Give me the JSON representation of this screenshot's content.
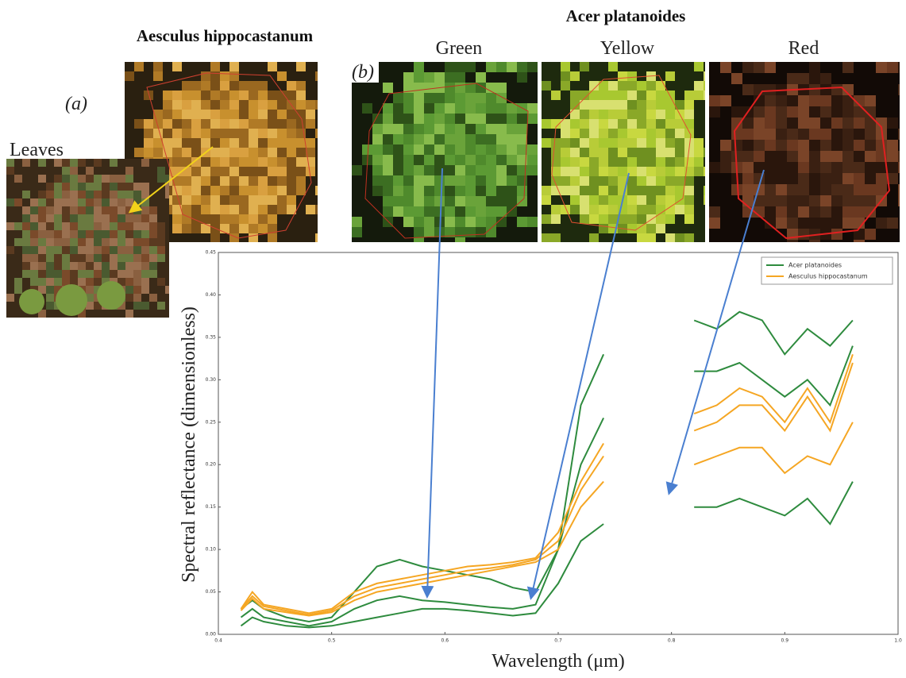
{
  "labels": {
    "panel_a": "(a)",
    "panel_b": "(b)",
    "leaves": "Leaves",
    "aesculus_title": "Aesculus hippocastanum",
    "acer_title": "Acer platanoides",
    "green": "Green",
    "yellow": "Yellow",
    "red": "Red"
  },
  "chart_data": {
    "type": "line",
    "xlabel": "Wavelength (μm)",
    "ylabel": "Spectral reflectance (dimensionless)",
    "xlim": [
      0.4,
      1.0
    ],
    "ylim": [
      0,
      0.45
    ],
    "xticks": [
      0.4,
      0.5,
      0.6,
      0.7,
      0.8,
      0.9,
      {
        "value": 1,
        "label": "1.0"
      }
    ],
    "yticks": [
      {
        "value": 0,
        "label": "0.00"
      },
      {
        "value": 0.05,
        "label": "0.05"
      },
      {
        "value": 0.1,
        "label": "0.10"
      },
      {
        "value": 0.15,
        "label": "0.15"
      },
      {
        "value": 0.2,
        "label": "0.20"
      },
      {
        "value": 0.25,
        "label": "0.25"
      },
      {
        "value": 0.3,
        "label": "0.30"
      },
      {
        "value": 0.35,
        "label": "0.35"
      },
      {
        "value": 0.4,
        "label": "0.40"
      },
      {
        "value": 0.45,
        "label": "0.45"
      }
    ],
    "grid": false,
    "legend": "upper right",
    "x": [
      0.42,
      0.43,
      0.44,
      0.46,
      0.48,
      0.5,
      0.52,
      0.54,
      0.56,
      0.58,
      0.6,
      0.62,
      0.64,
      0.66,
      0.68,
      0.7,
      0.72,
      0.74,
      0.78,
      0.82,
      0.84,
      0.86,
      0.88,
      0.9,
      0.92,
      0.94,
      0.96
    ],
    "series": [
      {
        "name": "Acer platanoides",
        "color": "#2e8b3e",
        "lines": [
          [
            0.03,
            0.04,
            0.03,
            0.02,
            0.015,
            0.02,
            0.05,
            0.08,
            0.088,
            0.08,
            0.075,
            0.07,
            0.065,
            0.055,
            0.05,
            0.1,
            0.27,
            0.33,
            null,
            0.37,
            0.36,
            0.38,
            0.37,
            0.33,
            0.36,
            0.34,
            0.37
          ],
          [
            0.02,
            0.03,
            0.02,
            0.015,
            0.01,
            0.015,
            0.03,
            0.04,
            0.045,
            0.04,
            0.038,
            0.035,
            0.032,
            0.03,
            0.035,
            0.1,
            0.2,
            0.255,
            null,
            0.31,
            0.31,
            0.32,
            0.3,
            0.28,
            0.3,
            0.27,
            0.34
          ],
          [
            0.01,
            0.02,
            0.015,
            0.01,
            0.008,
            0.01,
            0.015,
            0.02,
            0.025,
            0.03,
            0.03,
            0.028,
            0.025,
            0.022,
            0.025,
            0.06,
            0.11,
            0.13,
            null,
            0.15,
            0.15,
            0.16,
            0.15,
            0.14,
            0.16,
            0.13,
            0.18
          ]
        ]
      },
      {
        "name": "Aesculus hippocastanum",
        "color": "#f5a623",
        "lines": [
          [
            0.03,
            0.05,
            0.035,
            0.03,
            0.025,
            0.03,
            0.05,
            0.06,
            0.065,
            0.07,
            0.075,
            0.08,
            0.082,
            0.085,
            0.09,
            0.12,
            0.18,
            0.225,
            null,
            0.26,
            0.27,
            0.29,
            0.28,
            0.25,
            0.29,
            0.25,
            0.33
          ],
          [
            0.03,
            0.045,
            0.033,
            0.028,
            0.023,
            0.028,
            0.045,
            0.055,
            0.06,
            0.065,
            0.07,
            0.075,
            0.078,
            0.082,
            0.088,
            0.11,
            0.17,
            0.21,
            null,
            0.24,
            0.25,
            0.27,
            0.27,
            0.24,
            0.28,
            0.24,
            0.32
          ],
          [
            0.028,
            0.042,
            0.03,
            0.026,
            0.022,
            0.026,
            0.04,
            0.05,
            0.055,
            0.06,
            0.065,
            0.07,
            0.075,
            0.08,
            0.085,
            0.1,
            0.15,
            0.18,
            null,
            0.2,
            0.21,
            0.22,
            0.22,
            0.19,
            0.21,
            0.2,
            0.25
          ]
        ]
      }
    ]
  }
}
